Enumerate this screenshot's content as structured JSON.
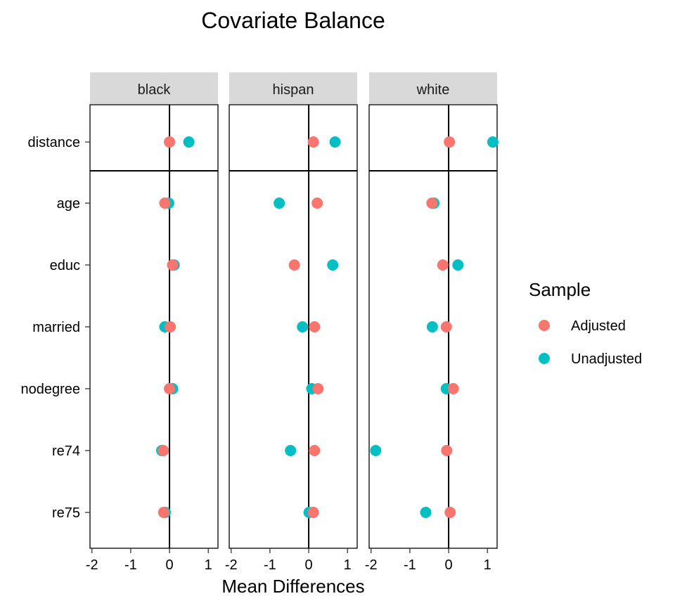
{
  "chart_data": {
    "type": "scatter",
    "title": "Covariate Balance",
    "xlabel": "Mean Differences",
    "ylabel": "",
    "xlim": [
      -2.05,
      1.25
    ],
    "xticks": [
      -2,
      -1,
      0,
      1
    ],
    "xtick_labels": [
      "-2",
      "-1",
      "0",
      "1"
    ],
    "variables": [
      "distance",
      "age",
      "educ",
      "married",
      "nodegree",
      "re74",
      "re75"
    ],
    "panels": [
      "black",
      "hispan",
      "white"
    ],
    "legend": {
      "title": "Sample",
      "position": "right",
      "entries": [
        "Adjusted",
        "Unadjusted"
      ]
    },
    "colors": {
      "Adjusted": "#F8766D",
      "Unadjusted": "#00BFC4"
    },
    "grid": false,
    "series": [
      {
        "name": "Adjusted",
        "values": {
          "black": [
            0.0,
            -0.12,
            0.08,
            0.02,
            0.0,
            -0.16,
            -0.15
          ],
          "hispan": [
            0.12,
            0.22,
            -0.37,
            0.15,
            0.24,
            0.15,
            0.12
          ],
          "white": [
            0.02,
            -0.43,
            -0.15,
            -0.06,
            0.12,
            -0.05,
            0.04
          ]
        }
      },
      {
        "name": "Unadjusted",
        "values": {
          "black": [
            0.5,
            -0.02,
            0.12,
            -0.12,
            0.08,
            -0.2,
            -0.11
          ],
          "hispan": [
            0.68,
            -0.76,
            0.62,
            -0.16,
            0.08,
            -0.47,
            0.01
          ],
          "white": [
            1.14,
            -0.38,
            0.24,
            -0.42,
            -0.06,
            -1.88,
            -0.59
          ]
        }
      }
    ]
  }
}
